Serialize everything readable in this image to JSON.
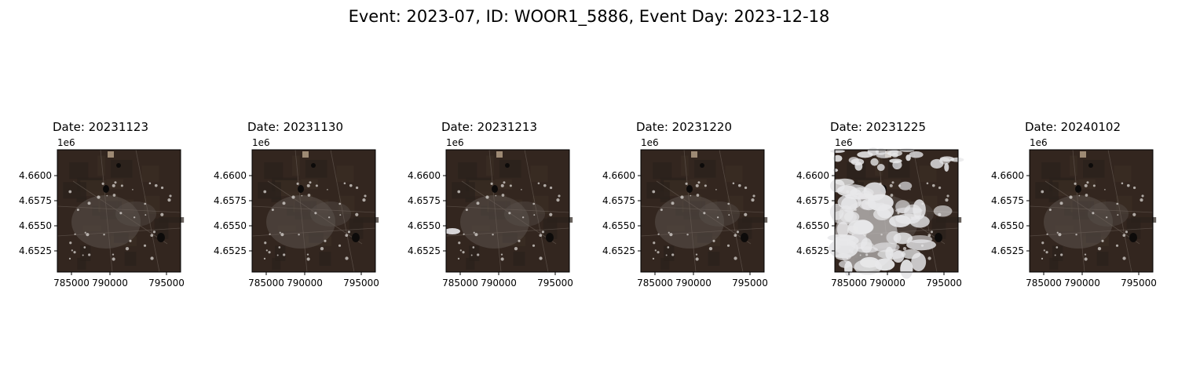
{
  "figure": {
    "title": "Event: 2023-07, ID: WOOR1_5886, Event Day: 2023-12-18"
  },
  "axes_common": {
    "y_offset_label": "1e6",
    "y_ticks": [
      "4.6600",
      "4.6575",
      "4.6550",
      "4.6525"
    ],
    "x_ticks": [
      "785000",
      "790000",
      "795000"
    ]
  },
  "panels": [
    {
      "title": "Date: 20231123",
      "cloud_cover": "none"
    },
    {
      "title": "Date: 20231130",
      "cloud_cover": "none"
    },
    {
      "title": "Date: 20231213",
      "cloud_cover": "small"
    },
    {
      "title": "Date: 20231220",
      "cloud_cover": "none"
    },
    {
      "title": "Date: 20231225",
      "cloud_cover": "heavy"
    },
    {
      "title": "Date: 20240102",
      "cloud_cover": "none"
    }
  ],
  "colors": {
    "terrain": "#33261f",
    "urban": "#5b524d",
    "cloud": "#e8e8ea"
  }
}
